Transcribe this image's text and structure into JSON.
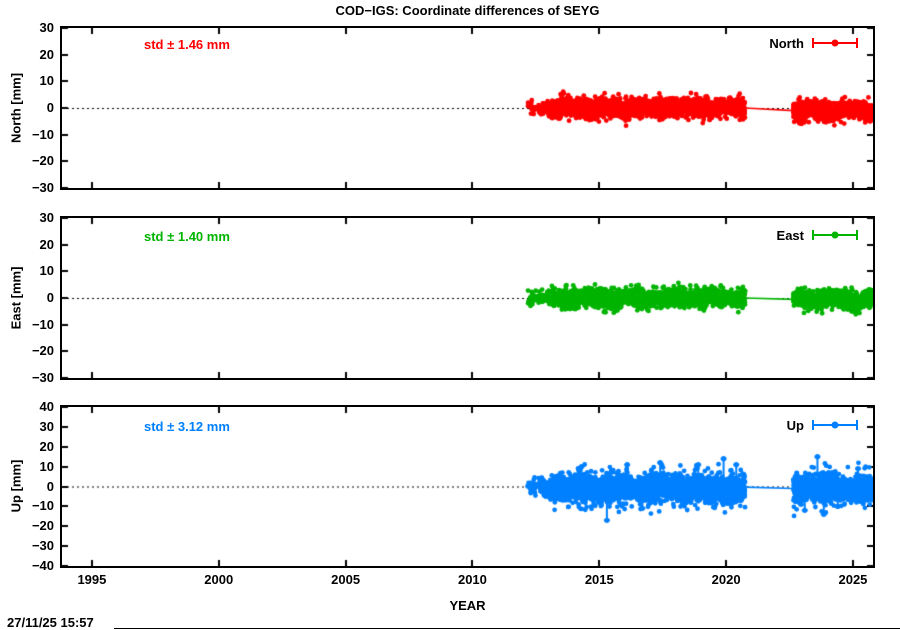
{
  "title": "COD−IGS: Coordinate differences of SEYG",
  "timestamp": "27/11/25 15:57",
  "chart_data": {
    "type": "scatter",
    "title": "COD−IGS: Coordinate differences of SEYG",
    "xlabel": "YEAR",
    "x_range": [
      1993.82,
      2025.79
    ],
    "x_ticks": [
      1995,
      2000,
      2005,
      2010,
      2015,
      2020,
      2025
    ],
    "grid": "zero-line-dotted-only",
    "legend_position": "top-right-inside",
    "data_coverage": {
      "sparse_clusters": [
        [
          2012.18,
          2012.5
        ],
        [
          2012.6,
          2013.05
        ]
      ],
      "dense_span_1": [
        2013.05,
        2020.75
      ],
      "gap_with_line": [
        2020.75,
        2022.65
      ],
      "dense_span_2": [
        2022.65,
        2025.82
      ]
    },
    "panels": [
      {
        "name": "North",
        "axis_label": "North [mm]",
        "legend": "North",
        "std_label": "std ± 1.46 mm",
        "std_mm": 1.46,
        "color": "#ff0000",
        "ylim": [
          -30,
          30
        ],
        "y_ticks": [
          30,
          20,
          10,
          0,
          -10,
          -20,
          -30
        ],
        "segment_means_mm": [
          0,
          0,
          0,
          -1.0
        ],
        "spikes": []
      },
      {
        "name": "East",
        "axis_label": "East [mm]",
        "legend": "East",
        "std_label": "std ± 1.40 mm",
        "std_mm": 1.4,
        "color": "#00b400",
        "ylim": [
          -30,
          30
        ],
        "y_ticks": [
          30,
          20,
          10,
          0,
          -10,
          -20,
          -30
        ],
        "segment_means_mm": [
          0,
          0,
          0,
          -0.5
        ],
        "spikes": []
      },
      {
        "name": "Up",
        "axis_label": "Up [mm]",
        "legend": "Up",
        "std_label": "std ± 3.12 mm",
        "std_mm": 3.12,
        "color": "#0080ff",
        "ylim": [
          -40,
          40
        ],
        "y_ticks": [
          40,
          30,
          20,
          10,
          0,
          -10,
          -20,
          -30,
          -40
        ],
        "segment_means_mm": [
          -0.5,
          -1.0,
          -1.0,
          -1.0
        ],
        "spikes": [
          {
            "x": 2014.3,
            "v": 10
          },
          {
            "x": 2015.3,
            "v": -17
          },
          {
            "x": 2016.1,
            "v": 11
          },
          {
            "x": 2016.7,
            "v": -11
          },
          {
            "x": 2017.4,
            "v": 12
          },
          {
            "x": 2018.9,
            "v": 11
          },
          {
            "x": 2019.9,
            "v": 14
          },
          {
            "x": 2020.4,
            "v": 11
          },
          {
            "x": 2023.1,
            "v": -12
          },
          {
            "x": 2023.6,
            "v": 15
          },
          {
            "x": 2023.85,
            "v": -14
          },
          {
            "x": 2024.4,
            "v": -10
          },
          {
            "x": 2025.2,
            "v": 9
          }
        ]
      }
    ]
  },
  "layout_note": "three stacked gnuplot panels, data only from mid-2012 onward, gap 2020.8–2022.6 bridged by thin line"
}
